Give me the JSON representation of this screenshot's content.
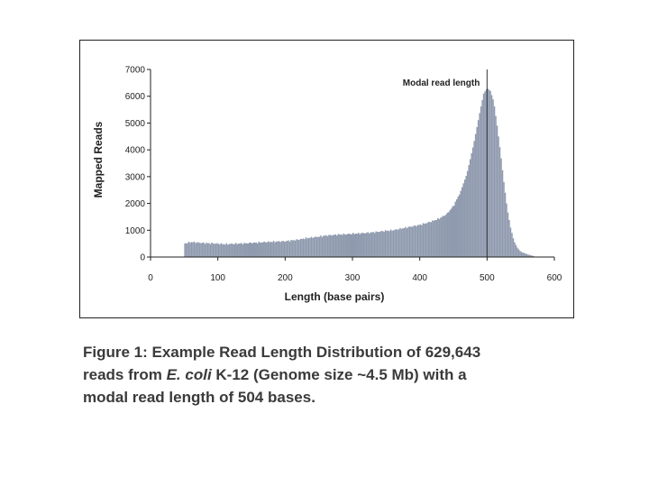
{
  "chart_data": {
    "type": "bar",
    "title": "",
    "xlabel": "Length (base pairs)",
    "ylabel": "Mapped Reads",
    "xlim": [
      0,
      600
    ],
    "ylim": [
      0,
      7000
    ],
    "xticks": [
      "0",
      "100",
      "200",
      "300",
      "400",
      "500",
      "600"
    ],
    "yticks": [
      "0",
      "1000",
      "2000",
      "3000",
      "4000",
      "5000",
      "6000",
      "7000"
    ],
    "grid": false,
    "bar_color": "#8f9aae",
    "annotation": {
      "label": "Modal read length",
      "x": 500
    },
    "points": [
      [
        50,
        500
      ],
      [
        60,
        560
      ],
      [
        70,
        540
      ],
      [
        80,
        520
      ],
      [
        90,
        510
      ],
      [
        100,
        500
      ],
      [
        110,
        480
      ],
      [
        120,
        490
      ],
      [
        130,
        500
      ],
      [
        140,
        510
      ],
      [
        150,
        530
      ],
      [
        160,
        540
      ],
      [
        170,
        560
      ],
      [
        180,
        570
      ],
      [
        190,
        580
      ],
      [
        200,
        590
      ],
      [
        210,
        620
      ],
      [
        220,
        650
      ],
      [
        230,
        700
      ],
      [
        240,
        730
      ],
      [
        250,
        760
      ],
      [
        260,
        800
      ],
      [
        270,
        820
      ],
      [
        280,
        840
      ],
      [
        290,
        850
      ],
      [
        300,
        870
      ],
      [
        310,
        880
      ],
      [
        320,
        900
      ],
      [
        330,
        920
      ],
      [
        340,
        950
      ],
      [
        350,
        980
      ],
      [
        360,
        1000
      ],
      [
        370,
        1050
      ],
      [
        380,
        1100
      ],
      [
        390,
        1150
      ],
      [
        400,
        1200
      ],
      [
        410,
        1270
      ],
      [
        420,
        1350
      ],
      [
        430,
        1450
      ],
      [
        440,
        1600
      ],
      [
        450,
        1900
      ],
      [
        460,
        2400
      ],
      [
        470,
        3100
      ],
      [
        480,
        4200
      ],
      [
        490,
        5500
      ],
      [
        495,
        6100
      ],
      [
        500,
        6300
      ],
      [
        505,
        6200
      ],
      [
        510,
        5800
      ],
      [
        515,
        4900
      ],
      [
        520,
        3900
      ],
      [
        525,
        2800
      ],
      [
        530,
        1800
      ],
      [
        535,
        1100
      ],
      [
        540,
        600
      ],
      [
        545,
        350
      ],
      [
        550,
        200
      ],
      [
        560,
        100
      ],
      [
        570,
        30
      ]
    ]
  },
  "caption": {
    "line1": "Figure 1: Example Read Length Distribution of 629,643",
    "line2_a": "reads from ",
    "line2_b": "E. coli",
    "line2_c": " K-12 (Genome size ~4.5 Mb) with a",
    "line3": "modal read length of 504 bases."
  }
}
